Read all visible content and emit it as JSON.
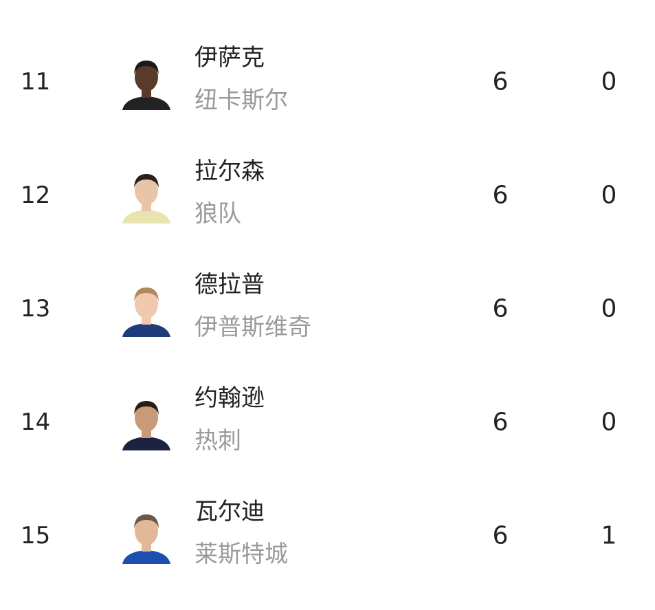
{
  "players": [
    {
      "rank": "11",
      "name": "伊萨克",
      "team": "纽卡斯尔",
      "stat1": "6",
      "stat2": "0",
      "skin": "#5a3a28",
      "hair": "#1a1a1a",
      "shirt": "#222222"
    },
    {
      "rank": "12",
      "name": "拉尔森",
      "team": "狼队",
      "stat1": "6",
      "stat2": "0",
      "skin": "#e8c4a8",
      "hair": "#2a1f1a",
      "shirt": "#e9e3b0"
    },
    {
      "rank": "13",
      "name": "德拉普",
      "team": "伊普斯维奇",
      "stat1": "6",
      "stat2": "0",
      "skin": "#efc8ae",
      "hair": "#b08a5a",
      "shirt": "#1f3c7a"
    },
    {
      "rank": "14",
      "name": "约翰逊",
      "team": "热刺",
      "stat1": "6",
      "stat2": "0",
      "skin": "#c99a78",
      "hair": "#2a1c14",
      "shirt": "#1c2340"
    },
    {
      "rank": "15",
      "name": "瓦尔迪",
      "team": "莱斯特城",
      "stat1": "6",
      "stat2": "1",
      "skin": "#e2b898",
      "hair": "#6a5848",
      "shirt": "#1d4fb0"
    }
  ]
}
